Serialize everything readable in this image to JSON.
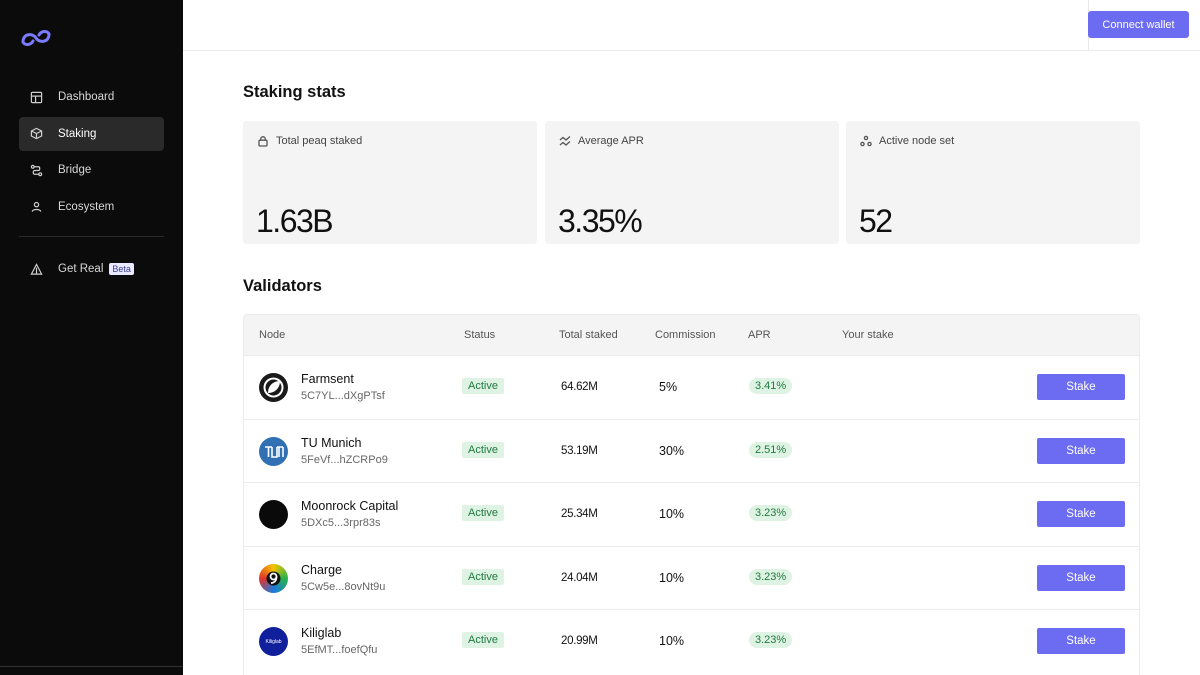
{
  "topbar": {
    "connect_label": "Connect wallet"
  },
  "sidebar": {
    "items": [
      {
        "label": "Dashboard",
        "icon": "dashboard-icon"
      },
      {
        "label": "Staking",
        "icon": "cube-icon",
        "active": true
      },
      {
        "label": "Bridge",
        "icon": "bridge-icon"
      },
      {
        "label": "Ecosystem",
        "icon": "user-icon"
      }
    ],
    "get_real": {
      "label": "Get Real",
      "badge": "Beta",
      "icon": "triangle-icon"
    }
  },
  "stats": {
    "title": "Staking stats",
    "cards": [
      {
        "label": "Total peaq staked",
        "value": "1.63B",
        "icon": "lock-icon"
      },
      {
        "label": "Average APR",
        "value": "3.35%",
        "icon": "trend-icon"
      },
      {
        "label": "Active node set",
        "value": "52",
        "icon": "nodes-icon"
      }
    ]
  },
  "validators": {
    "title": "Validators",
    "columns": [
      "Node",
      "Status",
      "Total staked",
      "Commission",
      "APR",
      "Your stake"
    ],
    "rows": [
      {
        "name": "Farmsent",
        "address": "5C7YL...dXgPTsf",
        "status": "Active",
        "total": "64.62M",
        "commission": "5%",
        "apr": "3.41%",
        "action": "Stake",
        "avatar": "farmsent-logo"
      },
      {
        "name": "TU Munich",
        "address": "5FeVf...hZCRPo9",
        "status": "Active",
        "total": "53.19M",
        "commission": "30%",
        "apr": "2.51%",
        "action": "Stake",
        "avatar": "tum-logo"
      },
      {
        "name": "Moonrock Capital",
        "address": "5DXc5...3rpr83s",
        "status": "Active",
        "total": "25.34M",
        "commission": "10%",
        "apr": "3.23%",
        "action": "Stake",
        "avatar": "moonrock-logo"
      },
      {
        "name": "Charge",
        "address": "5Cw5e...8ovNt9u",
        "status": "Active",
        "total": "24.04M",
        "commission": "10%",
        "apr": "3.23%",
        "action": "Stake",
        "avatar": "charge-logo"
      },
      {
        "name": "Kiliglab",
        "address": "5EfMT...foefQfu",
        "status": "Active",
        "total": "20.99M",
        "commission": "10%",
        "apr": "3.23%",
        "action": "Stake",
        "avatar": "kiliglab-logo",
        "avatar_text": "Kiliglab"
      }
    ]
  },
  "colors": {
    "accent": "#6c6cf2",
    "sidebar_bg": "#0b0b0b",
    "active_green_bg": "#dff3e4",
    "active_green_text": "#1f7a3e"
  }
}
